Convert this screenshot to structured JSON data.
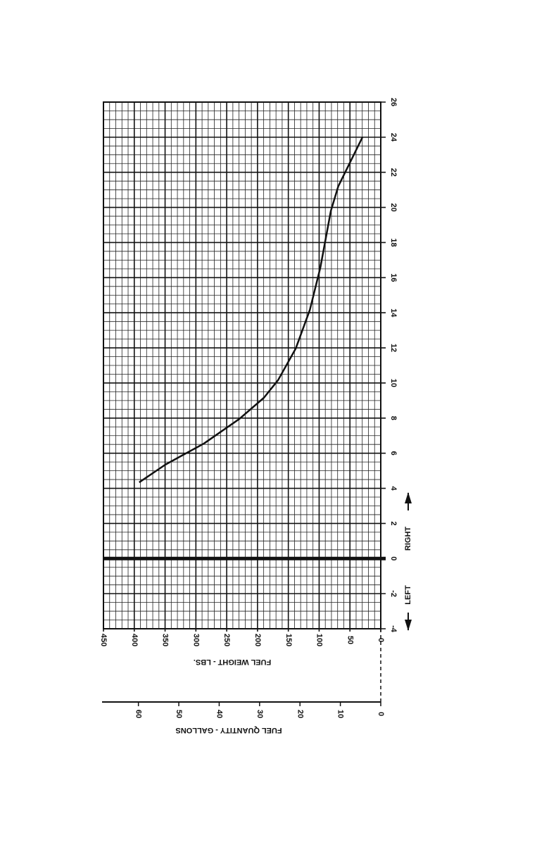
{
  "chart_data": {
    "type": "line",
    "x_label": "FUEL WEIGHT - LBS.",
    "x2_label": "FUEL QUANTITY - GALLONS",
    "annotations": [
      "LEFT",
      "RIGHT"
    ],
    "x": [
      392,
      349.5,
      287,
      229.6,
      189.6,
      166.7,
      138,
      115,
      98,
      81,
      69,
      29.7
    ],
    "series": [
      {
        "color": "#111111",
        "values": [
          4.34,
          5.35,
          6.55,
          7.95,
          9.16,
          10.16,
          11.96,
          14.17,
          16.58,
          19.8,
          21.2,
          24.0
        ]
      }
    ],
    "xlim": [
      450,
      0
    ],
    "xticks": [
      450,
      400,
      350,
      300,
      250,
      200,
      150,
      100,
      50,
      0
    ],
    "x2lim": [
      69,
      0
    ],
    "x2ticks": [
      60,
      50,
      40,
      30,
      20,
      10,
      0
    ],
    "ylim": [
      -4,
      26
    ],
    "yticks": [
      -4,
      -2,
      0,
      2,
      4,
      6,
      8,
      10,
      12,
      14,
      16,
      18,
      20,
      22,
      24,
      26
    ],
    "grid": true
  }
}
